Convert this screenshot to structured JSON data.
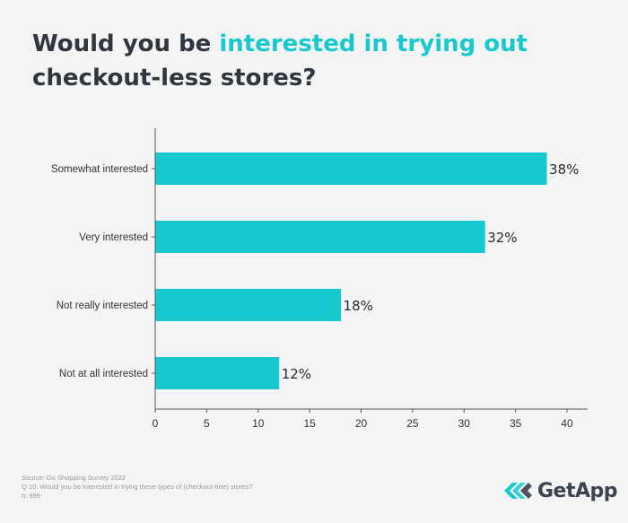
{
  "title": {
    "part1": "Would you be ",
    "part2": "interested in trying out",
    "part3": "checkout-less stores?"
  },
  "chart_data": {
    "type": "bar",
    "orientation": "horizontal",
    "categories": [
      "Somewhat interested",
      "Very interested",
      "Not really interested",
      "Not at all interested"
    ],
    "values": [
      38,
      32,
      18,
      12
    ],
    "value_labels": [
      "38%",
      "32%",
      "18%",
      "12%"
    ],
    "xlim": [
      0,
      40
    ],
    "xticks": [
      "0",
      "5",
      "10",
      "15",
      "20",
      "25",
      "30",
      "35",
      "40"
    ],
    "bar_color": "#17c9cf",
    "grid": false
  },
  "footer": {
    "source": "Source: Go Shopping Survey 2022",
    "question": "Q 10: Would you be interested in trying these types of (checkout-free) stores?",
    "n": "n: 999"
  },
  "brand": {
    "name": "GetApp",
    "color": "#17c9cf",
    "logo_icon": "getapp-chevrons-icon"
  }
}
